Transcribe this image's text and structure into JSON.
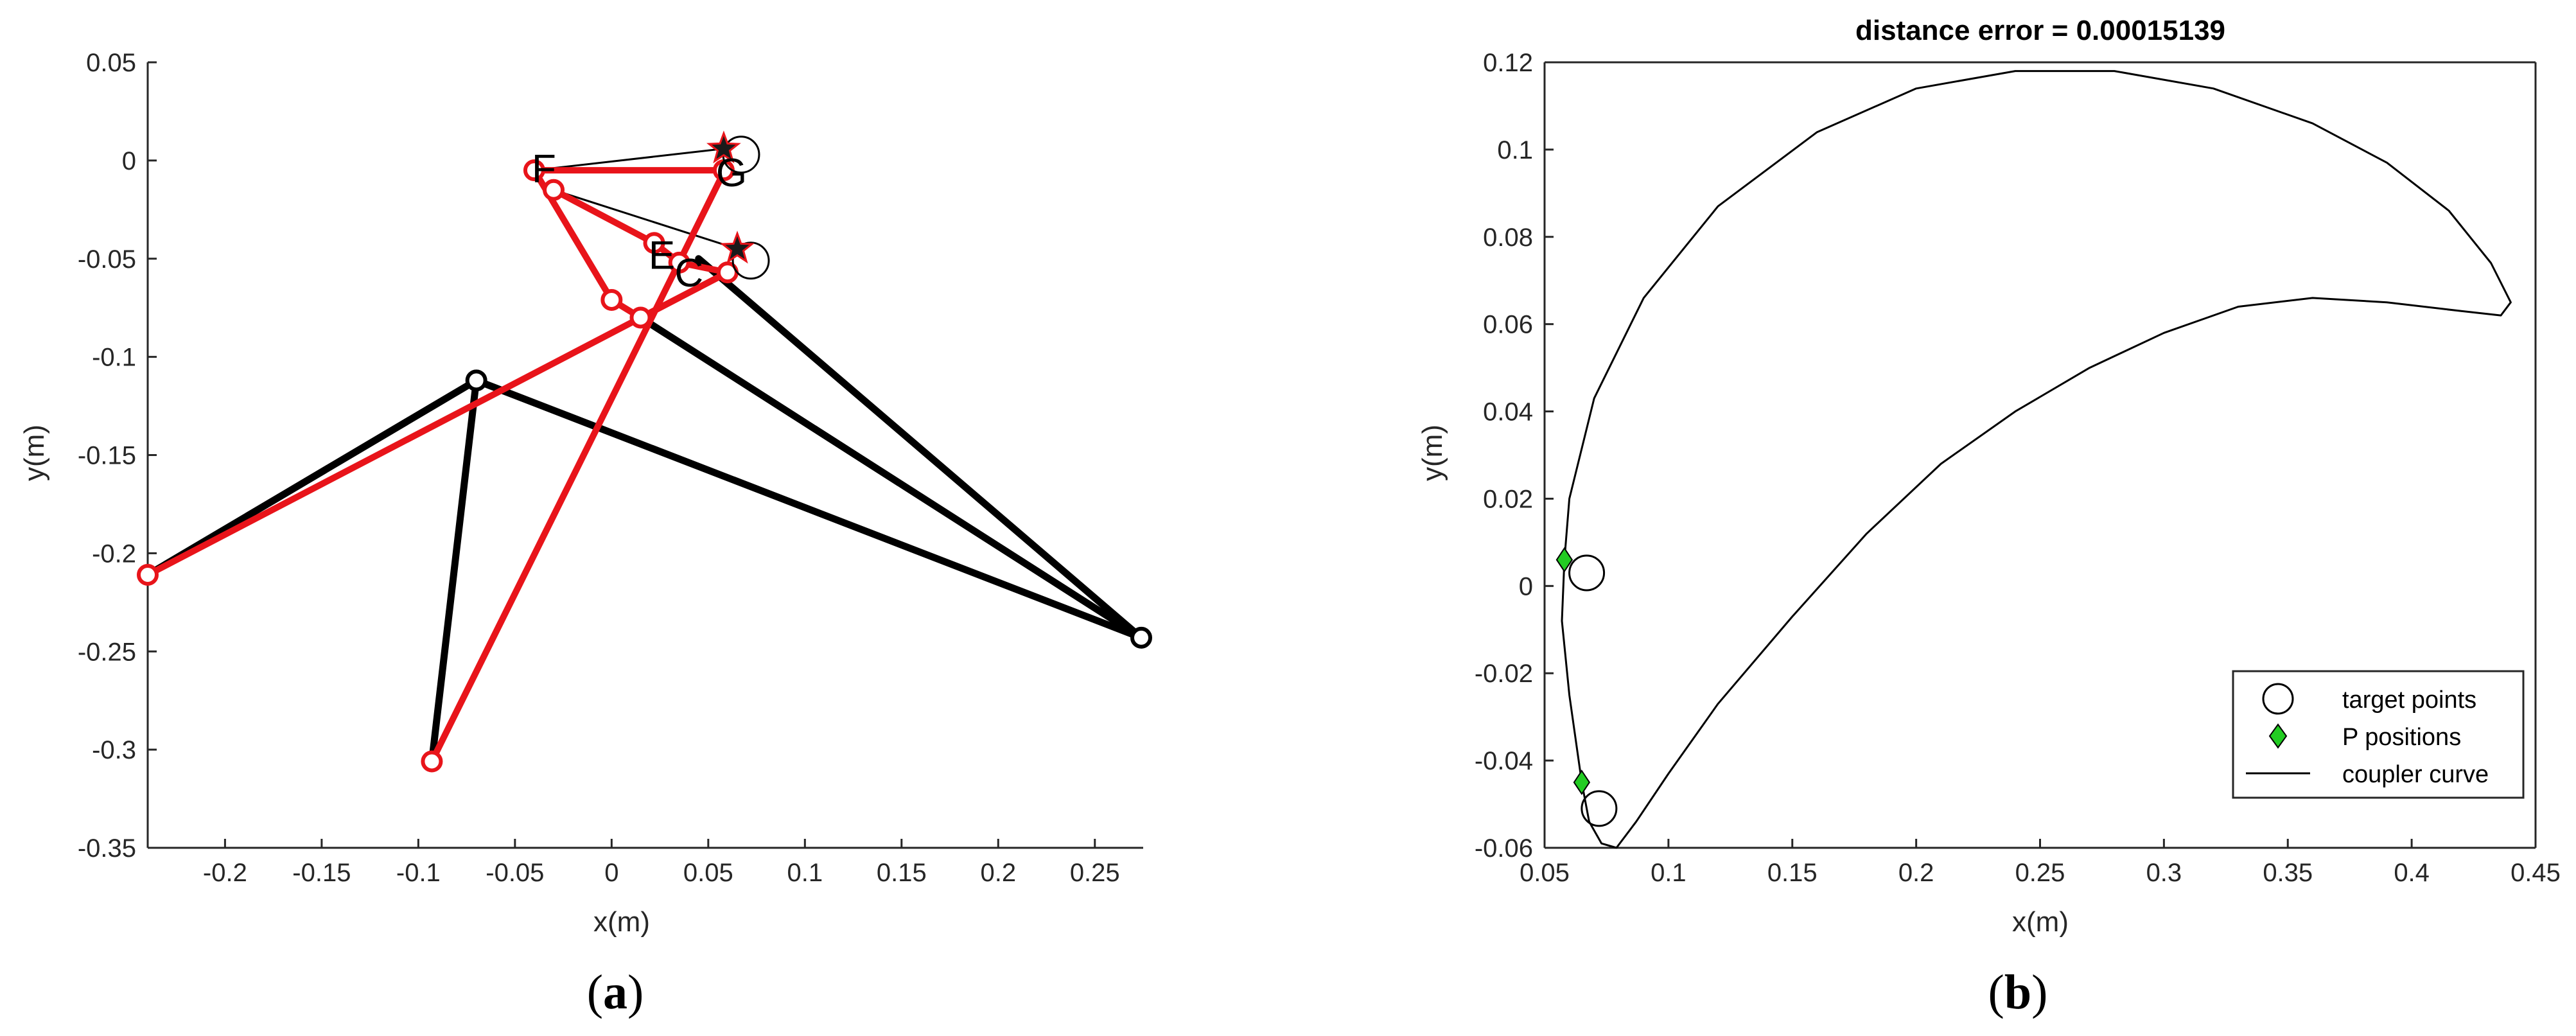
{
  "panels": [
    {
      "caption": "(a)",
      "caption_letter": "a",
      "chart_data": {
        "type": "line",
        "title": "",
        "xlabel": "x(m)",
        "ylabel": "y(m)",
        "xlim": [
          -0.24,
          0.275
        ],
        "ylim": [
          -0.35,
          0.05
        ],
        "xticks": [
          -0.2,
          -0.15,
          -0.1,
          -0.05,
          0,
          0.05,
          0.1,
          0.15,
          0.2,
          0.25
        ],
        "xtick_labels": [
          "-0.2",
          "-0.15",
          "-0.1",
          "-0.05",
          "0",
          "0.05",
          "0.1",
          "0.15",
          "0.2",
          "0.25"
        ],
        "yticks": [
          0.05,
          0,
          -0.05,
          -0.1,
          -0.15,
          -0.2,
          -0.25,
          -0.3,
          -0.35
        ],
        "ytick_labels": [
          "0.05",
          "0",
          "-0.05",
          "-0.1",
          "-0.15",
          "-0.2",
          "-0.25",
          "-0.3",
          "-0.35"
        ],
        "grid": false,
        "series": [
          {
            "color": "#000000",
            "segments": [
              [
                [
                  -0.24,
                  -0.211
                ],
                [
                  -0.07,
                  -0.112
                ]
              ],
              [
                [
                  -0.07,
                  -0.112
                ],
                [
                  -0.093,
                  -0.306
                ]
              ],
              [
                [
                  -0.07,
                  -0.112
                ],
                [
                  0.274,
                  -0.243
                ]
              ],
              [
                [
                  0.274,
                  -0.243
                ],
                [
                  0.015,
                  -0.08
                ]
              ],
              [
                [
                  0.274,
                  -0.243
                ],
                [
                  0.045,
                  -0.05
                ]
              ],
              [
                [
                  -0.04,
                  -0.005
                ],
                [
                  0.058,
                  0.006
                ]
              ],
              [
                [
                  -0.03,
                  -0.015
                ],
                [
                  0.065,
                  -0.045
                ]
              ]
            ],
            "joints": [
              [
                -0.07,
                -0.112
              ],
              [
                0.274,
                -0.243
              ]
            ]
          },
          {
            "color": "#e8141a",
            "segments": [
              [
                [
                  -0.24,
                  -0.211
                ],
                [
                  0.06,
                  -0.057
                ]
              ],
              [
                [
                  -0.093,
                  -0.306
                ],
                [
                  0.058,
                  -0.006
                ]
              ],
              [
                [
                  -0.04,
                  -0.005
                ],
                [
                  0.058,
                  -0.005
                ]
              ],
              [
                [
                  -0.04,
                  -0.005
                ],
                [
                  0.0,
                  -0.071
                ]
              ],
              [
                [
                  0.0,
                  -0.071
                ],
                [
                  0.015,
                  -0.08
                ]
              ],
              [
                [
                  0.015,
                  -0.08
                ],
                [
                  0.06,
                  -0.057
                ]
              ],
              [
                [
                  -0.03,
                  -0.015
                ],
                [
                  0.022,
                  -0.042
                ]
              ],
              [
                [
                  0.022,
                  -0.042
                ],
                [
                  0.035,
                  -0.052
                ]
              ],
              [
                [
                  0.035,
                  -0.052
                ],
                [
                  0.06,
                  -0.057
                ]
              ]
            ],
            "joints": [
              [
                -0.24,
                -0.211
              ],
              [
                -0.093,
                -0.306
              ],
              [
                -0.04,
                -0.005
              ],
              [
                -0.03,
                -0.015
              ],
              [
                0.058,
                -0.005
              ],
              [
                0.0,
                -0.071
              ],
              [
                0.015,
                -0.08
              ],
              [
                0.022,
                -0.042
              ],
              [
                0.035,
                -0.052
              ],
              [
                0.06,
                -0.057
              ]
            ]
          }
        ],
        "target_points": [
          [
            0.067,
            0.003
          ],
          [
            0.072,
            -0.051
          ]
        ],
        "star_points": [
          [
            0.058,
            0.006
          ],
          [
            0.065,
            -0.045
          ]
        ],
        "annotations": [
          {
            "text": "F",
            "x": -0.035,
            "y": -0.004
          },
          {
            "text": "G",
            "x": 0.062,
            "y": -0.006
          },
          {
            "text": "E",
            "x": 0.026,
            "y": -0.048
          },
          {
            "text": "C",
            "x": 0.04,
            "y": -0.057
          }
        ]
      }
    },
    {
      "caption": "(b)",
      "caption_letter": "b",
      "chart_data": {
        "type": "line",
        "title": "distance error = 0.00015139",
        "xlabel": "x(m)",
        "ylabel": "y(m)",
        "xlim": [
          0.05,
          0.45
        ],
        "ylim": [
          -0.06,
          0.12
        ],
        "xticks": [
          0.05,
          0.1,
          0.15,
          0.2,
          0.25,
          0.3,
          0.35,
          0.4,
          0.45
        ],
        "xtick_labels": [
          "0.05",
          "0.1",
          "0.15",
          "0.2",
          "0.25",
          "0.3",
          "0.35",
          "0.4",
          "0.45"
        ],
        "yticks": [
          0.12,
          0.1,
          0.08,
          0.06,
          0.04,
          0.02,
          0,
          -0.02,
          -0.04,
          -0.06
        ],
        "ytick_labels": [
          "0.12",
          "0.1",
          "0.08",
          "0.06",
          "0.04",
          "0.02",
          "0",
          "-0.02",
          "-0.04",
          "-0.06"
        ],
        "grid": false,
        "legend_position": "bottom-right",
        "series": [
          {
            "name": "target points",
            "marker": "circle",
            "color": "#000000",
            "points": [
              [
                0.067,
                0.003
              ],
              [
                0.072,
                -0.051
              ]
            ]
          },
          {
            "name": "P positions",
            "marker": "diamond",
            "color": "#22cc22",
            "points": [
              [
                0.058,
                0.006
              ],
              [
                0.065,
                -0.045
              ]
            ]
          },
          {
            "name": "coupler curve",
            "marker": "line",
            "color": "#000000",
            "points": [
              [
                0.058,
                0.006
              ],
              [
                0.06,
                0.02
              ],
              [
                0.07,
                0.043
              ],
              [
                0.09,
                0.066
              ],
              [
                0.12,
                0.087
              ],
              [
                0.16,
                0.104
              ],
              [
                0.2,
                0.114
              ],
              [
                0.24,
                0.118
              ],
              [
                0.28,
                0.118
              ],
              [
                0.32,
                0.114
              ],
              [
                0.36,
                0.106
              ],
              [
                0.39,
                0.097
              ],
              [
                0.415,
                0.086
              ],
              [
                0.432,
                0.074
              ],
              [
                0.44,
                0.065
              ],
              [
                0.436,
                0.062
              ],
              [
                0.42,
                0.063
              ],
              [
                0.39,
                0.065
              ],
              [
                0.36,
                0.066
              ],
              [
                0.33,
                0.064
              ],
              [
                0.3,
                0.058
              ],
              [
                0.27,
                0.05
              ],
              [
                0.24,
                0.04
              ],
              [
                0.21,
                0.028
              ],
              [
                0.18,
                0.012
              ],
              [
                0.15,
                -0.007
              ],
              [
                0.12,
                -0.027
              ],
              [
                0.1,
                -0.043
              ],
              [
                0.087,
                -0.054
              ],
              [
                0.079,
                -0.06
              ],
              [
                0.073,
                -0.059
              ],
              [
                0.068,
                -0.054
              ],
              [
                0.065,
                -0.045
              ],
              [
                0.06,
                -0.025
              ],
              [
                0.057,
                -0.008
              ],
              [
                0.058,
                0.006
              ]
            ]
          }
        ]
      }
    }
  ]
}
